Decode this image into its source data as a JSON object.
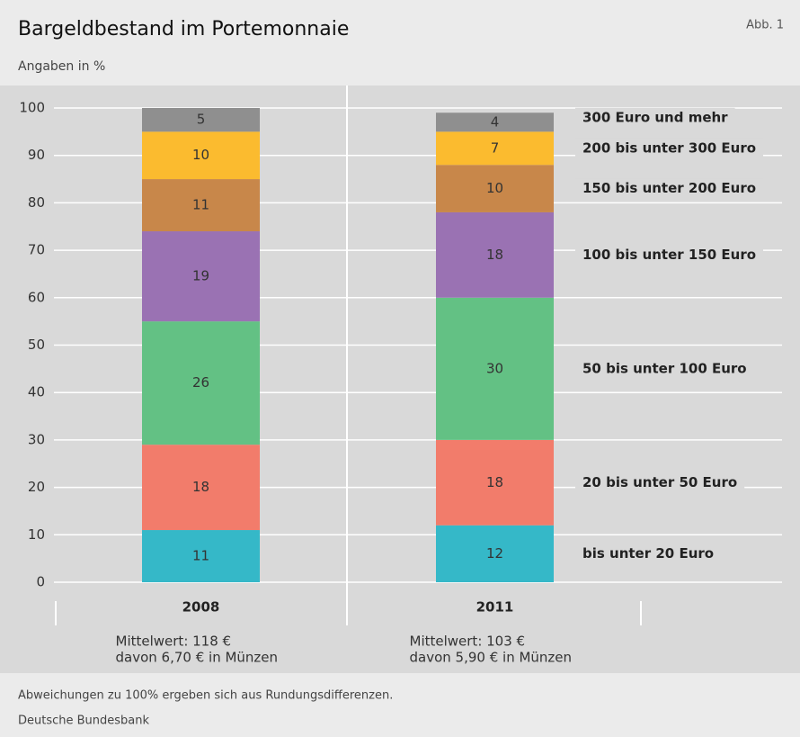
{
  "chart_data": {
    "type": "stacked_bar",
    "title": "Bargeldbestand im Portemonnaie",
    "figure_label": "Abb. 1",
    "subtitle": "Angaben in %",
    "categories": [
      "2008",
      "2011"
    ],
    "category_notes": [
      [
        "Mittelwert: 118 €",
        "davon 6,70 € in Münzen"
      ],
      [
        "Mittelwert: 103 €",
        "davon 5,90 € in Münzen"
      ]
    ],
    "series": [
      {
        "name": "bis unter 20 Euro",
        "color": "#35b8c8",
        "values": [
          11,
          12
        ]
      },
      {
        "name": "20 bis unter 50 Euro",
        "color": "#f27c6b",
        "values": [
          18,
          18
        ]
      },
      {
        "name": "50 bis unter 100 Euro",
        "color": "#63c184",
        "values": [
          26,
          30
        ]
      },
      {
        "name": "100 bis unter 150 Euro",
        "color": "#9a72b3",
        "values": [
          19,
          18
        ]
      },
      {
        "name": "150 bis unter 200 Euro",
        "color": "#c8874a",
        "values": [
          11,
          10
        ]
      },
      {
        "name": "200 bis unter 300 Euro",
        "color": "#fbbb2f",
        "values": [
          10,
          7
        ]
      },
      {
        "name": "300 Euro und mehr",
        "color": "#8f8f8f",
        "values": [
          5,
          4
        ]
      }
    ],
    "ylim": [
      0,
      100
    ],
    "yticks": [
      0,
      10,
      20,
      30,
      40,
      50,
      60,
      70,
      80,
      90,
      100
    ],
    "grid": true,
    "footnotes": [
      "Abweichungen zu 100% ergeben sich aus Rundungsdifferenzen.",
      "Deutsche Bundesbank"
    ]
  }
}
